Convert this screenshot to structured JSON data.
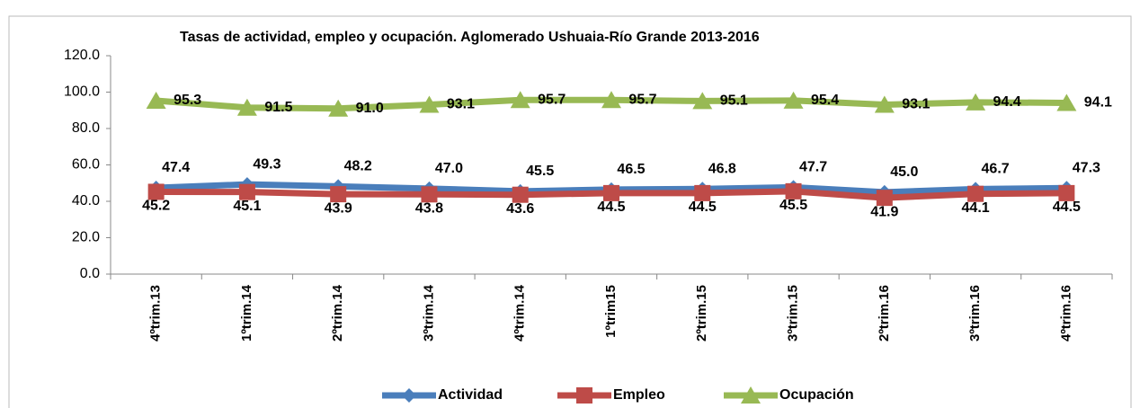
{
  "chart_data": {
    "type": "line",
    "title": "Tasas de actividad, empleo y ocupación. Aglomerado Ushuaia-Río Grande 2013-2016",
    "categories": [
      "4ºtrim.13",
      "1ºtrim.14",
      "2ºtrim.14",
      "3ºtrim.14",
      "4ºtrim.14",
      "1ºtrim15",
      "2ºtrim.15",
      "3ºtrim.15",
      "2ºtrim.16",
      "3ºtrim.16",
      "4ºtrim.16"
    ],
    "series": [
      {
        "name": "Actividad",
        "color": "#4a7ebb",
        "marker": "diamond",
        "values": [
          47.4,
          49.3,
          48.2,
          47.0,
          45.5,
          46.5,
          46.8,
          47.7,
          45.0,
          46.7,
          47.3
        ],
        "value_labels": [
          "47.4",
          "49.3",
          "48.2",
          "47.0",
          "45.5",
          "46.5",
          "46.8",
          "47.7",
          "45.0",
          "46.7",
          "47.3"
        ]
      },
      {
        "name": "Empleo",
        "color": "#be4b48",
        "marker": "square",
        "values": [
          45.2,
          45.1,
          43.9,
          43.8,
          43.6,
          44.5,
          44.5,
          45.5,
          41.9,
          44.1,
          44.5
        ],
        "value_labels": [
          "45.2",
          "45.1",
          "43.9",
          "43.8",
          "43.6",
          "44.5",
          "44.5",
          "45.5",
          "41.9",
          "44.1",
          "44.5"
        ]
      },
      {
        "name": "Ocupación",
        "color": "#98b954",
        "marker": "triangle",
        "values": [
          95.3,
          91.5,
          91.0,
          93.1,
          95.7,
          95.7,
          95.1,
          95.4,
          93.1,
          94.4,
          94.1
        ],
        "value_labels": [
          "95.3",
          "91.5",
          "91.0",
          "93.1",
          "95.7",
          "95.7",
          "95.1",
          "95.4",
          "93.1",
          "94.4",
          "94.1"
        ]
      }
    ],
    "ylim": [
      0,
      120
    ],
    "yticks": [
      {
        "value": 0,
        "label": "0.0"
      },
      {
        "value": 20,
        "label": "20.0"
      },
      {
        "value": 40,
        "label": "40.0"
      },
      {
        "value": 60,
        "label": "60.0"
      },
      {
        "value": 80,
        "label": "80.0"
      },
      {
        "value": 100,
        "label": "100.0"
      },
      {
        "value": 120,
        "label": "120.0"
      }
    ],
    "grid": false,
    "legend": "bottom"
  }
}
